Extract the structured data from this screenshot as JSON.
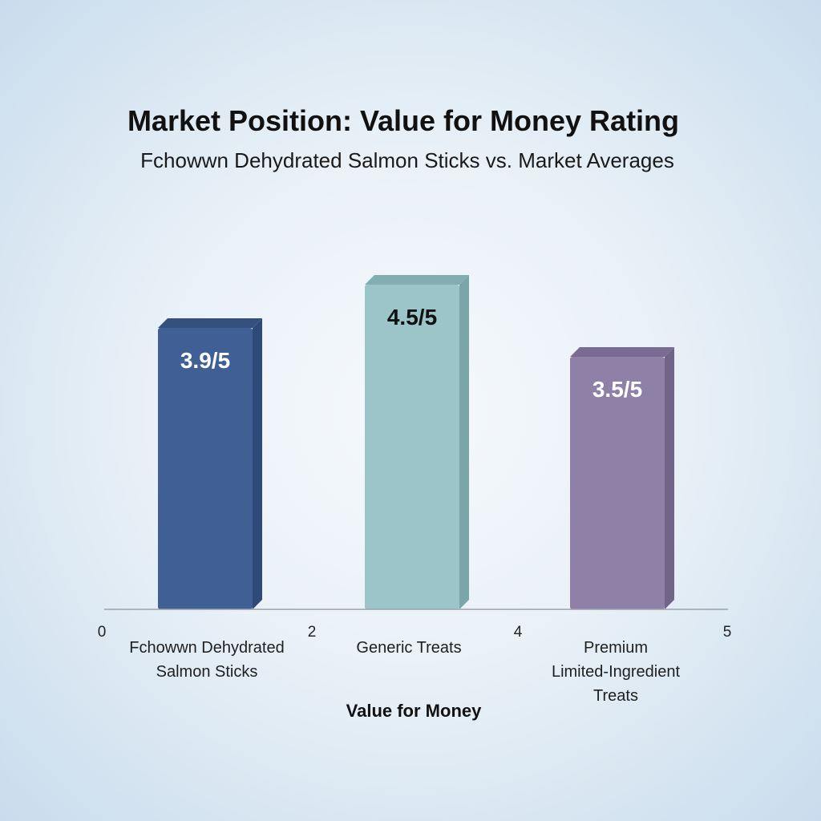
{
  "chart_data": {
    "type": "bar",
    "title": "Market Position: Value for Money Rating",
    "subtitle": "Fchowwn Dehydrated Salmon Sticks vs. Market Averages",
    "xlabel": "Value for Money",
    "ylim": [
      0,
      5
    ],
    "categories": [
      "Fchowwn Dehydrated Salmon Sticks",
      "Generic Treats",
      "Premium Limited-Ingredient Treats"
    ],
    "category_lines": [
      [
        "Fchowwn Dehydrated",
        "Salmon Sticks"
      ],
      [
        "Generic Treats"
      ],
      [
        "Premium",
        "Limited-Ingredient",
        "Treats"
      ]
    ],
    "values": [
      3.9,
      4.5,
      3.5
    ],
    "data_labels": [
      "3.9/5",
      "4.5/5",
      "3.5/5"
    ],
    "axis_ticks": [
      "0",
      "2",
      "4",
      "5"
    ],
    "colors": [
      "#3f5f95",
      "#9bc5c8",
      "#8f80a8"
    ],
    "side_colors": [
      "#2e4a78",
      "#7aa6aa",
      "#716488"
    ],
    "top_colors": [
      "#34507e",
      "#83aeb1",
      "#7a6b93"
    ],
    "label_colors": [
      "#ffffff",
      "#111111",
      "#ffffff"
    ],
    "grid": false
  }
}
